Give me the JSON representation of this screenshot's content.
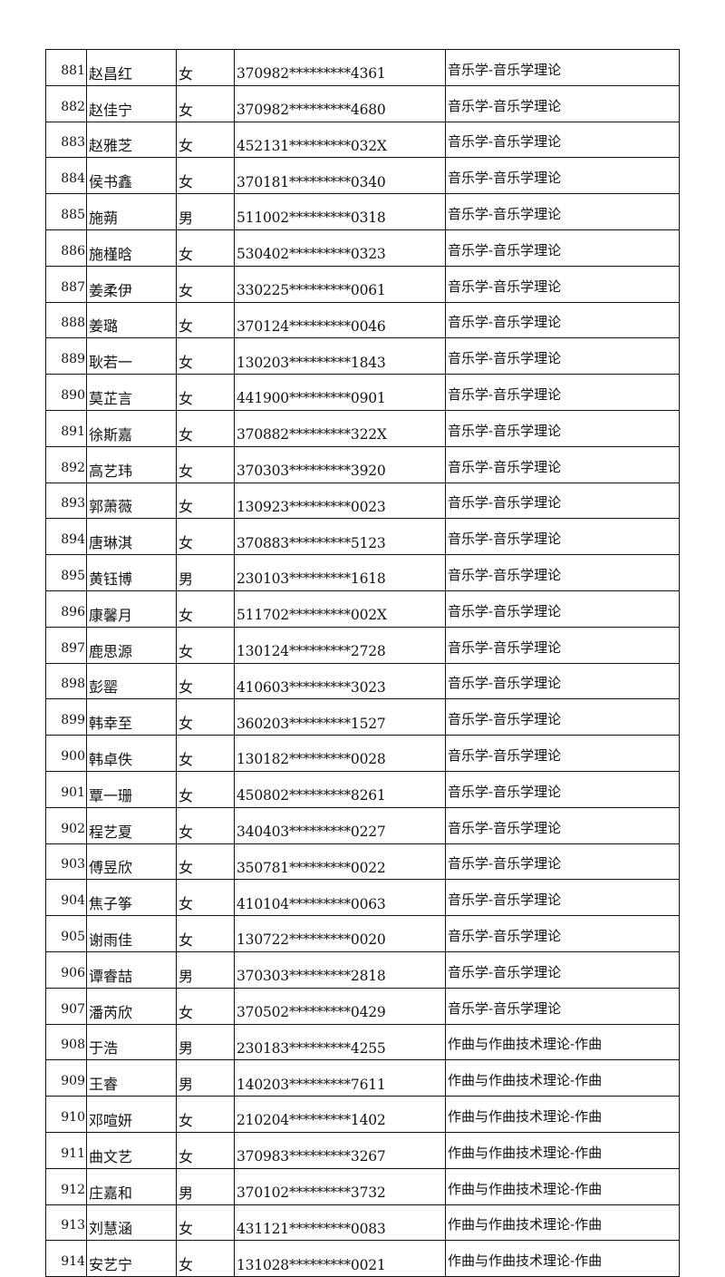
{
  "rows": [
    {
      "no": "881",
      "name": "赵昌红",
      "gender": "女",
      "id": "370982*********4361",
      "major": "音乐学-音乐学理论"
    },
    {
      "no": "882",
      "name": "赵佳宁",
      "gender": "女",
      "id": "370982*********4680",
      "major": "音乐学-音乐学理论"
    },
    {
      "no": "883",
      "name": "赵雅芝",
      "gender": "女",
      "id": "452131*********032X",
      "major": "音乐学-音乐学理论"
    },
    {
      "no": "884",
      "name": "侯书鑫",
      "gender": "女",
      "id": "370181*********0340",
      "major": "音乐学-音乐学理论"
    },
    {
      "no": "885",
      "name": "施蒴",
      "gender": "男",
      "id": "511002*********0318",
      "major": "音乐学-音乐学理论"
    },
    {
      "no": "886",
      "name": "施槿晗",
      "gender": "女",
      "id": "530402*********0323",
      "major": "音乐学-音乐学理论"
    },
    {
      "no": "887",
      "name": "姜柔伊",
      "gender": "女",
      "id": "330225*********0061",
      "major": "音乐学-音乐学理论"
    },
    {
      "no": "888",
      "name": "姜璐",
      "gender": "女",
      "id": "370124*********0046",
      "major": "音乐学-音乐学理论"
    },
    {
      "no": "889",
      "name": "耿若一",
      "gender": "女",
      "id": "130203*********1843",
      "major": "音乐学-音乐学理论"
    },
    {
      "no": "890",
      "name": "莫芷言",
      "gender": "女",
      "id": "441900*********0901",
      "major": "音乐学-音乐学理论"
    },
    {
      "no": "891",
      "name": "徐斯嘉",
      "gender": "女",
      "id": "370882*********322X",
      "major": "音乐学-音乐学理论"
    },
    {
      "no": "892",
      "name": "高艺玮",
      "gender": "女",
      "id": "370303*********3920",
      "major": "音乐学-音乐学理论"
    },
    {
      "no": "893",
      "name": "郭萧薇",
      "gender": "女",
      "id": "130923*********0023",
      "major": "音乐学-音乐学理论"
    },
    {
      "no": "894",
      "name": "唐琳淇",
      "gender": "女",
      "id": "370883*********5123",
      "major": "音乐学-音乐学理论"
    },
    {
      "no": "895",
      "name": "黄钰博",
      "gender": "男",
      "id": "230103*********1618",
      "major": "音乐学-音乐学理论"
    },
    {
      "no": "896",
      "name": "康馨月",
      "gender": "女",
      "id": "511702*********002X",
      "major": "音乐学-音乐学理论"
    },
    {
      "no": "897",
      "name": "鹿思源",
      "gender": "女",
      "id": "130124*********2728",
      "major": "音乐学-音乐学理论"
    },
    {
      "no": "898",
      "name": "彭罂",
      "gender": "女",
      "id": "410603*********3023",
      "major": "音乐学-音乐学理论"
    },
    {
      "no": "899",
      "name": "韩幸至",
      "gender": "女",
      "id": "360203*********1527",
      "major": "音乐学-音乐学理论"
    },
    {
      "no": "900",
      "name": "韩卓佚",
      "gender": "女",
      "id": "130182*********0028",
      "major": "音乐学-音乐学理论"
    },
    {
      "no": "901",
      "name": "覃一珊",
      "gender": "女",
      "id": "450802*********8261",
      "major": "音乐学-音乐学理论"
    },
    {
      "no": "902",
      "name": "程艺夏",
      "gender": "女",
      "id": "340403*********0227",
      "major": "音乐学-音乐学理论"
    },
    {
      "no": "903",
      "name": "傅昱欣",
      "gender": "女",
      "id": "350781*********0022",
      "major": "音乐学-音乐学理论"
    },
    {
      "no": "904",
      "name": "焦子筝",
      "gender": "女",
      "id": "410104*********0063",
      "major": "音乐学-音乐学理论"
    },
    {
      "no": "905",
      "name": "谢雨佳",
      "gender": "女",
      "id": "130722*********0020",
      "major": "音乐学-音乐学理论"
    },
    {
      "no": "906",
      "name": "谭睿喆",
      "gender": "男",
      "id": "370303*********2818",
      "major": "音乐学-音乐学理论"
    },
    {
      "no": "907",
      "name": "潘芮欣",
      "gender": "女",
      "id": "370502*********0429",
      "major": "音乐学-音乐学理论"
    },
    {
      "no": "908",
      "name": "于浩",
      "gender": "男",
      "id": "230183*********4255",
      "major": "作曲与作曲技术理论-作曲"
    },
    {
      "no": "909",
      "name": "王睿",
      "gender": "男",
      "id": "140203*********7611",
      "major": "作曲与作曲技术理论-作曲"
    },
    {
      "no": "910",
      "name": "邓喧妍",
      "gender": "女",
      "id": "210204*********1402",
      "major": "作曲与作曲技术理论-作曲"
    },
    {
      "no": "911",
      "name": "曲文艺",
      "gender": "女",
      "id": "370983*********3267",
      "major": "作曲与作曲技术理论-作曲"
    },
    {
      "no": "912",
      "name": "庄嘉和",
      "gender": "男",
      "id": "370102*********3732",
      "major": "作曲与作曲技术理论-作曲"
    },
    {
      "no": "913",
      "name": "刘慧涵",
      "gender": "女",
      "id": "431121*********0083",
      "major": "作曲与作曲技术理论-作曲"
    },
    {
      "no": "914",
      "name": "安艺宁",
      "gender": "女",
      "id": "131028*********0021",
      "major": "作曲与作曲技术理论-作曲"
    }
  ]
}
